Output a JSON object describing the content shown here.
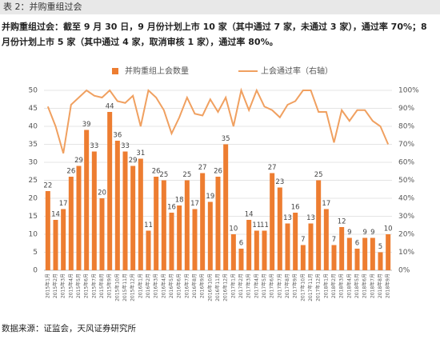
{
  "header": "表 2：并购重组过会",
  "note": "并购重组过会：截至 9 月 30 日，9 月份计划上市 10 家（其中通过 7 家，未通过 3 家），通过率 70%；8 月份计划上市 5 家（其中通过 4 家，取消审核 1 家），通过率 80%。",
  "source": "数据来源：证监会，天风证券研究所",
  "chart_data": {
    "type": "bar",
    "categories": [
      "2015年1月",
      "2015年2月",
      "2015年3月",
      "2015年4月",
      "2015年5月",
      "2015年6月",
      "2015年7月",
      "2015年8月",
      "2015年9月",
      "2015年10月",
      "2015年11月",
      "2015年12月",
      "2016年1月",
      "2016年2月",
      "2016年3月",
      "2016年4月",
      "2016年5月",
      "2016年6月",
      "2016年7月",
      "2016年8月",
      "2016年9月",
      "2016年10月",
      "2016年11月",
      "2016年12月",
      "2017年1月",
      "2017年2月",
      "2017年3月",
      "2017年4月",
      "2017年5月",
      "2017年6月",
      "2017年7月",
      "2017年8月",
      "2017年9月",
      "2017年10月",
      "2017年11月",
      "2017年12月",
      "2018年1月",
      "2018年2月",
      "2018年3月",
      "2018年4月",
      "2018年5月",
      "2018年6月",
      "2018年7月",
      "2018年8月",
      "2018年9月"
    ],
    "series": [
      {
        "name": "并购重组上会数量",
        "type": "bar",
        "color": "#ed7d31",
        "values": [
          22,
          14,
          17,
          26,
          29,
          39,
          33,
          20,
          44,
          36,
          33,
          29,
          31,
          11,
          26,
          25,
          16,
          18,
          25,
          17,
          27,
          19,
          26,
          35,
          10,
          6,
          14,
          11,
          11,
          27,
          23,
          13,
          16,
          7,
          13,
          25,
          17,
          7,
          12,
          9,
          6,
          9,
          9,
          5,
          10
        ]
      },
      {
        "name": "上会通过率（右轴）",
        "type": "line",
        "color": "#f0a060",
        "axis": "y2",
        "values": [
          91,
          80,
          65,
          92,
          96,
          100,
          97,
          96,
          100,
          94,
          93,
          97,
          80,
          100,
          96,
          89,
          76,
          85,
          96,
          87,
          86,
          95,
          88,
          96,
          80,
          100,
          89,
          100,
          91,
          89,
          85,
          92,
          94,
          100,
          100,
          88,
          88,
          71,
          89,
          83,
          89,
          89,
          83,
          80,
          70
        ]
      }
    ],
    "ylim": [
      0,
      50
    ],
    "yticks": [
      0,
      5,
      10,
      15,
      20,
      25,
      30,
      35,
      40,
      45,
      50
    ],
    "y2lim": [
      0,
      100
    ],
    "y2ticks": [
      {
        "value": 0,
        "label": "0%"
      },
      {
        "value": 10,
        "label": "10%"
      },
      {
        "value": 20,
        "label": "20%"
      },
      {
        "value": 30,
        "label": "30%"
      },
      {
        "value": 40,
        "label": "40%"
      },
      {
        "value": 50,
        "label": "50%"
      },
      {
        "value": 60,
        "label": "60%"
      },
      {
        "value": 70,
        "label": "70%"
      },
      {
        "value": 80,
        "label": "80%"
      },
      {
        "value": 90,
        "label": "90%"
      },
      {
        "value": 100,
        "label": "100%"
      }
    ],
    "grid": true,
    "legend": "top"
  }
}
